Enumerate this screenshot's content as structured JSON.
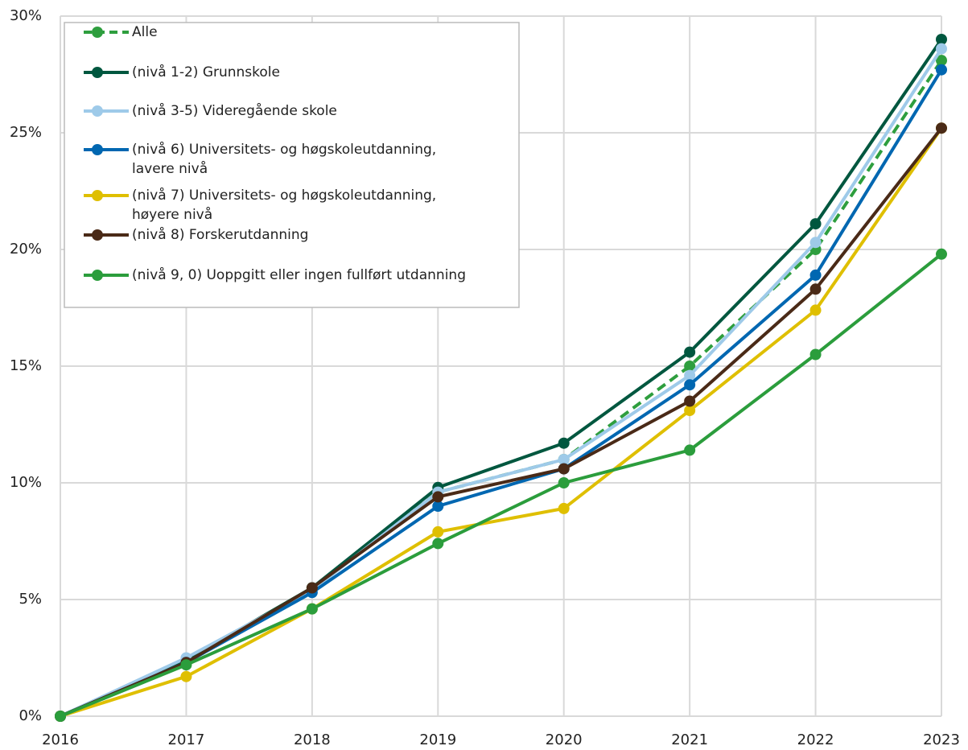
{
  "chart_data": {
    "type": "line",
    "categories": [
      "2016",
      "2017",
      "2018",
      "2019",
      "2020",
      "2021",
      "2022",
      "2023"
    ],
    "ylim": [
      0,
      30
    ],
    "yticks": [
      {
        "value": 0,
        "label": "0%"
      },
      {
        "value": 5,
        "label": "5%"
      },
      {
        "value": 10,
        "label": "10%"
      },
      {
        "value": 15,
        "label": "15%"
      },
      {
        "value": 20,
        "label": "20%"
      },
      {
        "value": 25,
        "label": "25%"
      },
      {
        "value": 30,
        "label": "30%"
      }
    ],
    "grid": true,
    "legend": "top-left",
    "series": [
      {
        "name": "Alle",
        "color": "#2e9e3e",
        "style": "dashed",
        "values": [
          0,
          2.3,
          5.5,
          9.6,
          11.0,
          15.0,
          20.0,
          28.1
        ]
      },
      {
        "name": "(nivå 1-2) Grunnskole",
        "color": "#00573f",
        "style": "solid",
        "values": [
          0,
          2.4,
          5.5,
          9.8,
          11.7,
          15.6,
          21.1,
          29.0
        ]
      },
      {
        "name": "(nivå 3-5) Videregående skole",
        "color": "#9ecae9",
        "style": "solid",
        "values": [
          0,
          2.5,
          5.4,
          9.6,
          11.0,
          14.6,
          20.3,
          28.6
        ]
      },
      {
        "name": "(nivå 6) Universitets- og høgskoleutdanning,\nlavere nivå",
        "color": "#0067b1",
        "style": "solid",
        "values": [
          0,
          2.3,
          5.3,
          9.0,
          10.6,
          14.2,
          18.9,
          27.7
        ]
      },
      {
        "name": "(nivå 7) Universitets- og høgskoleutdanning,\nhøyere nivå",
        "color": "#dfbf00",
        "style": "solid",
        "values": [
          0,
          1.7,
          4.6,
          7.9,
          8.9,
          13.1,
          17.4,
          25.2
        ]
      },
      {
        "name": "(nivå 8) Forskerutdanning",
        "color": "#4a2a17",
        "style": "solid",
        "values": [
          0,
          2.3,
          5.5,
          9.4,
          10.6,
          13.5,
          18.3,
          25.2
        ]
      },
      {
        "name": "(nivå 9, 0) Uoppgitt eller ingen fullført utdanning",
        "color": "#2b9d3c",
        "style": "solid",
        "values": [
          0,
          2.2,
          4.6,
          7.4,
          10.0,
          11.4,
          15.5,
          19.8
        ]
      }
    ]
  }
}
